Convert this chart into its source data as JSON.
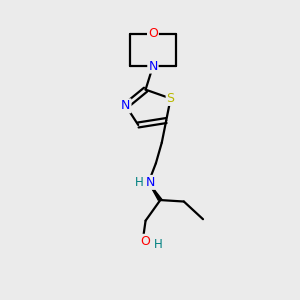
{
  "background_color": "#ebebeb",
  "bond_color": "#000000",
  "atom_colors": {
    "O": "#ff0000",
    "N": "#0000ff",
    "S": "#b8b800",
    "H": "#008080",
    "C": "#000000"
  },
  "figsize": [
    3.0,
    3.0
  ],
  "dpi": 100
}
